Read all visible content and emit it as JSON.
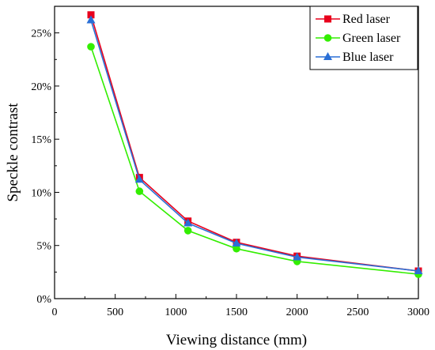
{
  "chart_data": {
    "type": "line",
    "title": "",
    "xlabel": "Viewing distance (mm)",
    "ylabel": "Speckle contrast",
    "xlim": [
      0,
      3000
    ],
    "ylim": [
      0,
      0.275
    ],
    "xticks": [
      0,
      500,
      1000,
      1500,
      2000,
      2500,
      3000
    ],
    "xtick_labels": [
      "0",
      "500",
      "1000",
      "1500",
      "2000",
      "2500",
      "3000"
    ],
    "yticks": [
      0,
      0.05,
      0.1,
      0.15,
      0.2,
      0.25
    ],
    "ytick_labels": [
      "0%",
      "5%",
      "10%",
      "15%",
      "20%",
      "25%"
    ],
    "grid": false,
    "legend_position": "top-right",
    "x": [
      300,
      700,
      1100,
      1500,
      2000,
      3000
    ],
    "series": [
      {
        "name": "Red laser",
        "color": "#e8001c",
        "marker": "square",
        "values": [
          0.267,
          0.114,
          0.073,
          0.053,
          0.04,
          0.026
        ]
      },
      {
        "name": "Green laser",
        "color": "#33ee00",
        "marker": "circle",
        "values": [
          0.237,
          0.101,
          0.064,
          0.047,
          0.035,
          0.023
        ]
      },
      {
        "name": "Blue laser",
        "color": "#2a6fd6",
        "marker": "triangle",
        "values": [
          0.262,
          0.112,
          0.071,
          0.052,
          0.039,
          0.026
        ]
      }
    ]
  }
}
